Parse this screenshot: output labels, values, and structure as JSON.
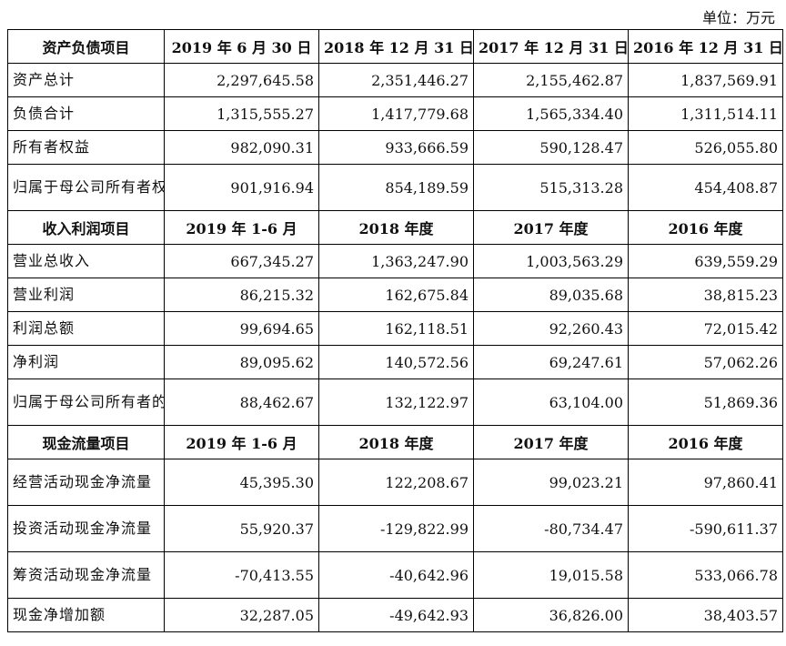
{
  "unit_label": "单位：万元",
  "sections": [
    {
      "header": [
        "资产负债项目",
        "2019 年 6 月 30 日",
        "2018 年 12 月 31 日",
        "2017 年 12 月 31 日",
        "2016 年 12 月 31 日"
      ],
      "rows": [
        {
          "label": "资产总计",
          "values": [
            "2,297,645.58",
            "2,351,446.27",
            "2,155,462.87",
            "1,837,569.91"
          ]
        },
        {
          "label": "负债合计",
          "values": [
            "1,315,555.27",
            "1,417,779.68",
            "1,565,334.40",
            "1,311,514.11"
          ]
        },
        {
          "label": "所有者权益",
          "values": [
            "982,090.31",
            "933,666.59",
            "590,128.47",
            "526,055.80"
          ]
        },
        {
          "label": "归属于母公司所有者权益合计",
          "values": [
            "901,916.94",
            "854,189.59",
            "515,313.28",
            "454,408.87"
          ]
        }
      ]
    },
    {
      "header": [
        "收入利润项目",
        "2019 年 1-6 月",
        "2018 年度",
        "2017 年度",
        "2016 年度"
      ],
      "rows": [
        {
          "label": "营业总收入",
          "values": [
            "667,345.27",
            "1,363,247.90",
            "1,003,563.29",
            "639,559.29"
          ]
        },
        {
          "label": "营业利润",
          "values": [
            "86,215.32",
            "162,675.84",
            "89,035.68",
            "38,815.23"
          ]
        },
        {
          "label": "利润总额",
          "values": [
            "99,694.65",
            "162,118.51",
            "92,260.43",
            "72,015.42"
          ]
        },
        {
          "label": "净利润",
          "values": [
            "89,095.62",
            "140,572.56",
            "69,247.61",
            "57,062.26"
          ]
        },
        {
          "label": "归属于母公司所有者的净利润",
          "values": [
            "88,462.67",
            "132,122.97",
            "63,104.00",
            "51,869.36"
          ]
        }
      ]
    },
    {
      "header": [
        "现金流量项目",
        "2019 年 1-6 月",
        "2018 年度",
        "2017 年度",
        "2016 年度"
      ],
      "rows": [
        {
          "label": "经营活动现金净流量",
          "values": [
            "45,395.30",
            "122,208.67",
            "99,023.21",
            "97,860.41"
          ]
        },
        {
          "label": "投资活动现金净流量",
          "values": [
            "55,920.37",
            "-129,822.99",
            "-80,734.47",
            "-590,611.37"
          ]
        },
        {
          "label": "筹资活动现金净流量",
          "values": [
            "-70,413.55",
            "-40,642.96",
            "19,015.58",
            "533,066.78"
          ]
        },
        {
          "label": "现金净增加额",
          "values": [
            "32,287.05",
            "-49,642.93",
            "36,826.00",
            "38,403.57"
          ]
        }
      ]
    }
  ]
}
